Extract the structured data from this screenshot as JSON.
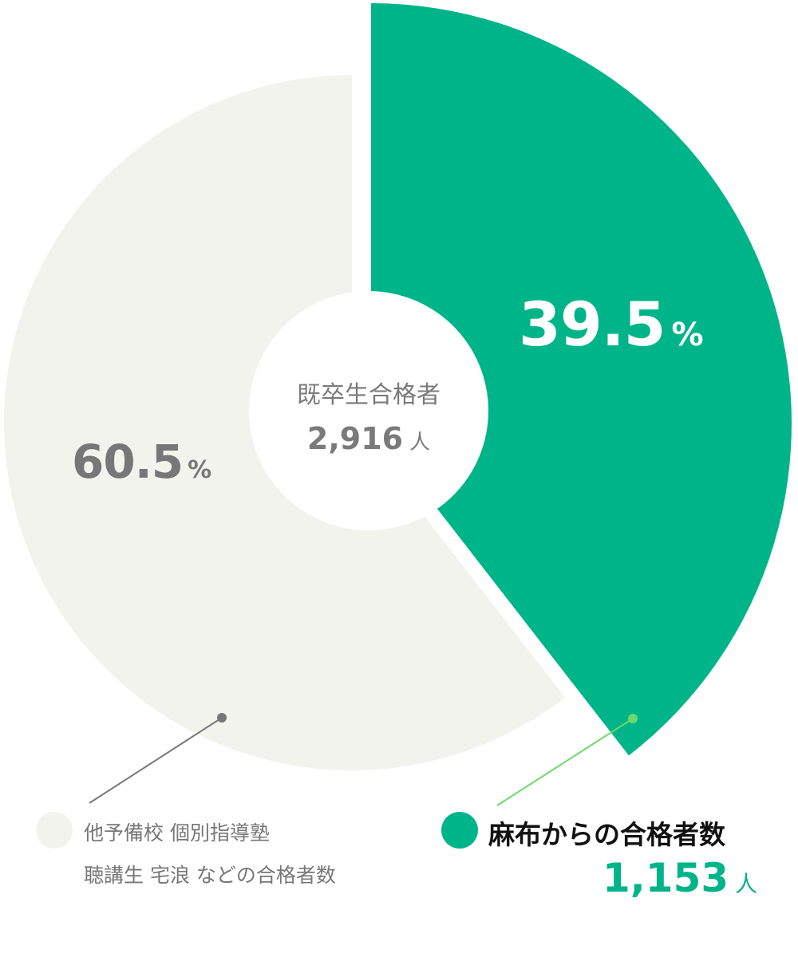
{
  "chart_data": {
    "type": "pie",
    "variant": "donut-exploded",
    "center_label": {
      "title": "既卒生合格者",
      "value": "2,916",
      "unit": "人"
    },
    "slices": [
      {
        "label_line1": "麻布からの合格者数",
        "value_text": "1,153",
        "unit": "人",
        "percent": 39.5,
        "percent_text": "39.5",
        "percent_unit": "%",
        "color": "#00b48a",
        "exploded": true
      },
      {
        "label_line1": "他予備校  個別指導塾",
        "label_line2": "聴講生  宅浪 などの合格者数",
        "percent": 60.5,
        "percent_text": "60.5",
        "percent_unit": "%",
        "color": "#f3f3ee",
        "exploded": false
      }
    ],
    "colors": {
      "text_gray": "#777777",
      "leader_green": "#6fd86a",
      "leader_gray": "#777777"
    }
  }
}
